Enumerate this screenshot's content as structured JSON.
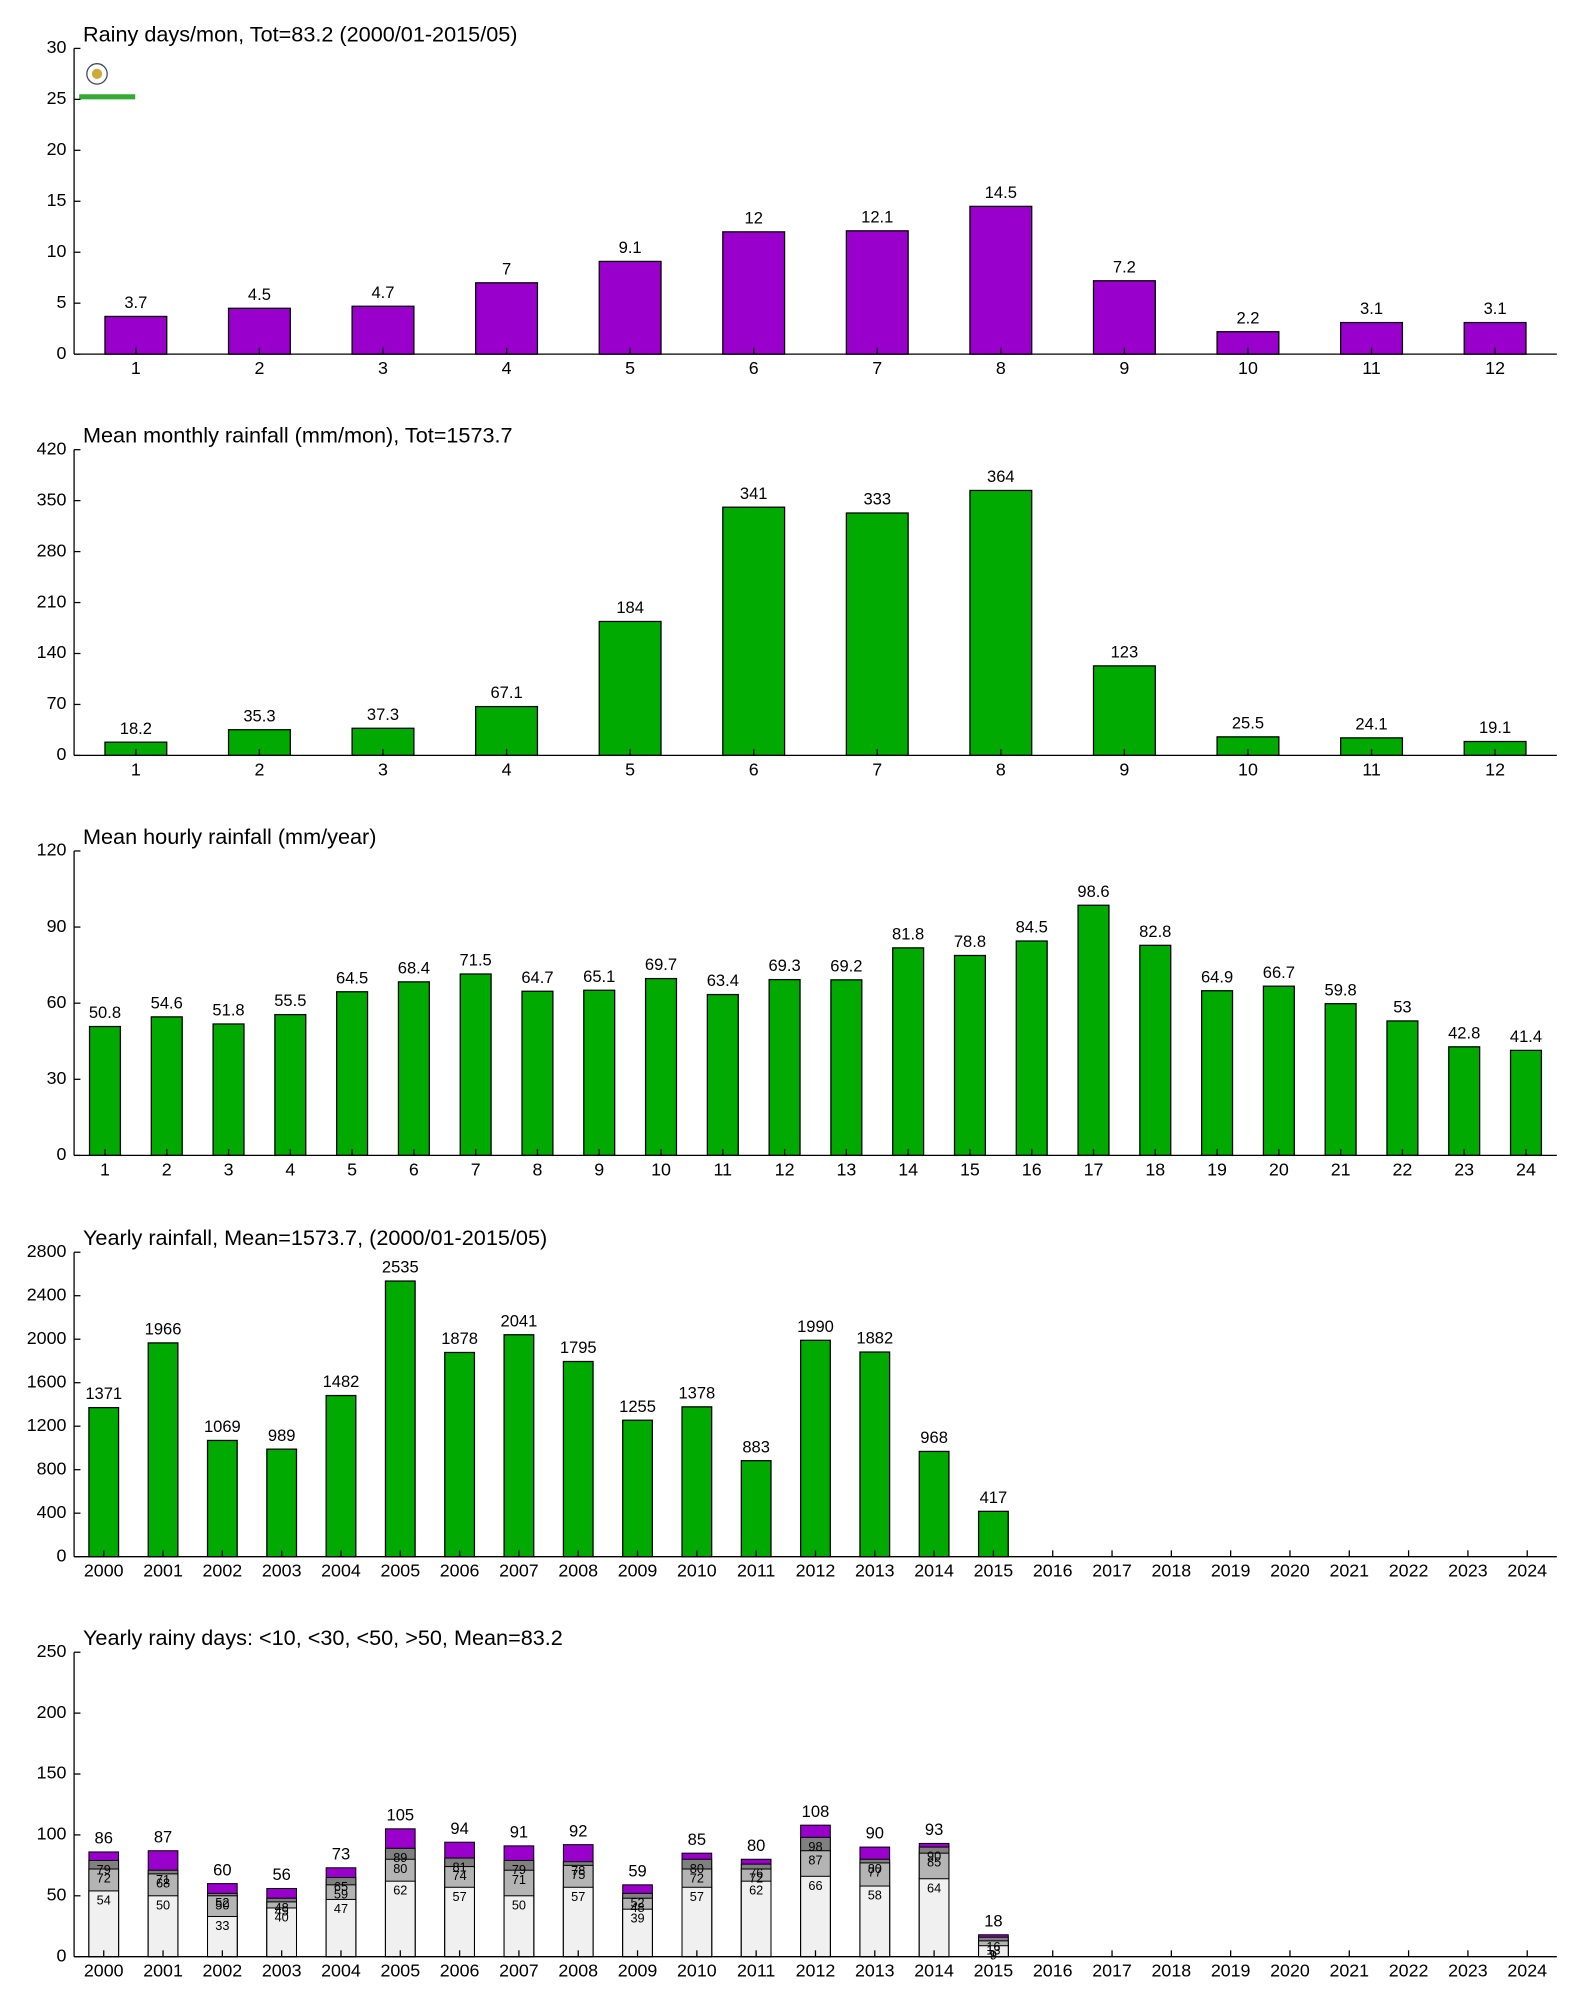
{
  "chart_data": [
    {
      "type": "bar",
      "title": "Rainy days/mon, Tot=83.2 (2000/01-2015/05)",
      "categories": [
        "1",
        "2",
        "3",
        "4",
        "5",
        "6",
        "7",
        "8",
        "9",
        "10",
        "11",
        "12"
      ],
      "values": [
        3.7,
        4.5,
        4.7,
        7,
        9.1,
        12,
        12.1,
        14.5,
        7.2,
        2.2,
        3.1,
        3.1
      ],
      "color": "#9900cc",
      "ylim": [
        0,
        30
      ],
      "yticks": [
        0,
        5,
        10,
        15,
        20,
        25,
        30
      ]
    },
    {
      "type": "bar",
      "title": "Mean monthly rainfall (mm/mon), Tot=1573.7",
      "categories": [
        "1",
        "2",
        "3",
        "4",
        "5",
        "6",
        "7",
        "8",
        "9",
        "10",
        "11",
        "12"
      ],
      "values": [
        18.2,
        35.3,
        37.3,
        67.1,
        184,
        341,
        333,
        364,
        123,
        25.5,
        24.1,
        19.1
      ],
      "color": "#00aa00",
      "ylim": [
        0,
        420
      ],
      "yticks": [
        0,
        70,
        140,
        210,
        280,
        350,
        420
      ]
    },
    {
      "type": "bar",
      "title": "Mean hourly rainfall (mm/year)",
      "categories": [
        "1",
        "2",
        "3",
        "4",
        "5",
        "6",
        "7",
        "8",
        "9",
        "10",
        "11",
        "12",
        "13",
        "14",
        "15",
        "16",
        "17",
        "18",
        "19",
        "20",
        "21",
        "22",
        "23",
        "24"
      ],
      "values": [
        50.8,
        54.6,
        51.8,
        55.5,
        64.5,
        68.4,
        71.5,
        64.7,
        65.1,
        69.7,
        63.4,
        69.3,
        69.2,
        81.8,
        78.8,
        84.5,
        98.6,
        82.8,
        64.9,
        66.7,
        59.8,
        53,
        42.8,
        41.4
      ],
      "color": "#00aa00",
      "ylim": [
        0,
        120
      ],
      "yticks": [
        0,
        30,
        60,
        90,
        120
      ]
    },
    {
      "type": "bar",
      "title": "Yearly rainfall, Mean=1573.7, (2000/01-2015/05)",
      "categories": [
        "2000",
        "2001",
        "2002",
        "2003",
        "2004",
        "2005",
        "2006",
        "2007",
        "2008",
        "2009",
        "2010",
        "2011",
        "2012",
        "2013",
        "2014",
        "2015",
        "2016",
        "2017",
        "2018",
        "2019",
        "2020",
        "2021",
        "2022",
        "2023",
        "2024"
      ],
      "values": [
        1371,
        1966,
        1069,
        989,
        1482,
        2535,
        1878,
        2041,
        1795,
        1255,
        1378,
        883,
        1990,
        1882,
        968,
        417,
        null,
        null,
        null,
        null,
        null,
        null,
        null,
        null,
        null
      ],
      "color": "#00aa00",
      "ylim": [
        0,
        2800
      ],
      "yticks": [
        0,
        400,
        800,
        1200,
        1600,
        2000,
        2400,
        2800
      ]
    },
    {
      "type": "bar",
      "title": "Yearly rainy days: <10, <30, <50, >50, Mean=83.2",
      "categories": [
        "2000",
        "2001",
        "2002",
        "2003",
        "2004",
        "2005",
        "2006",
        "2007",
        "2008",
        "2009",
        "2010",
        "2011",
        "2012",
        "2013",
        "2014",
        "2015",
        "2016",
        "2017",
        "2018",
        "2019",
        "2020",
        "2021",
        "2022",
        "2023",
        "2024"
      ],
      "series": [
        {
          "color": "#f0f0f0",
          "values": [
            54,
            50,
            33,
            40,
            47,
            62,
            57,
            50,
            57,
            39,
            57,
            62,
            66,
            58,
            64,
            9,
            null,
            null,
            null,
            null,
            null,
            null,
            null,
            null,
            null
          ]
        },
        {
          "color": "#b4b4b4",
          "values": [
            72,
            68,
            50,
            45,
            59,
            80,
            74,
            71,
            75,
            48,
            72,
            72,
            87,
            77,
            85,
            13,
            null,
            null,
            null,
            null,
            null,
            null,
            null,
            null,
            null
          ]
        },
        {
          "color": "#808080",
          "values": [
            79,
            71,
            52,
            48,
            65,
            89,
            81,
            79,
            78,
            52,
            80,
            76,
            98,
            80,
            90,
            16,
            null,
            null,
            null,
            null,
            null,
            null,
            null,
            null,
            null
          ]
        },
        {
          "color": "#9900cc",
          "values": [
            86,
            87,
            60,
            56,
            73,
            105,
            94,
            91,
            92,
            59,
            85,
            80,
            108,
            90,
            93,
            18,
            null,
            null,
            null,
            null,
            null,
            null,
            null,
            null,
            null
          ]
        }
      ],
      "ylim": [
        0,
        250
      ],
      "yticks": [
        0,
        50,
        100,
        150,
        200,
        250
      ]
    }
  ]
}
